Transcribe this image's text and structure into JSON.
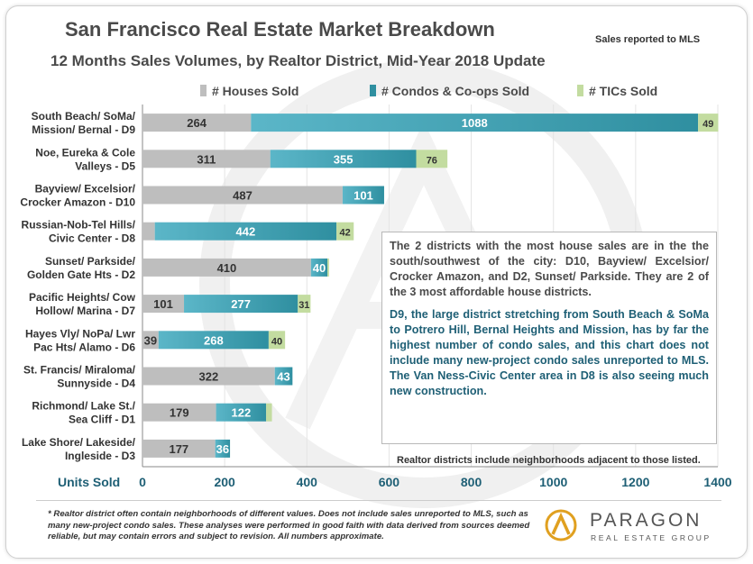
{
  "title": "San Francisco Real Estate Market Breakdown",
  "subtitle": "12 Months Sales Volumes, by Realtor District, Mid-Year 2018 Update",
  "sales_note": "Sales reported to MLS",
  "annotation": {
    "p1": "The 2 districts with the most house sales are in the the south/southwest of the city: D10, Bayview/ Excelsior/ Crocker Amazon, and D2, Sunset/ Parkside. They are 2 of the 3 most affordable house districts.",
    "p2": "D9, the large district stretching from South Beach & SoMa to Potrero Hill, Bernal Heights and Mission, has by far the highest number of condo sales, and this chart does not include many new-project condo sales unreported to MLS. The Van Ness-Civic Center area in D8 is also seeing much new construction."
  },
  "districts_note": "Realtor districts  include neighborhoods adjacent to those  listed.",
  "footnote": "* Realtor district often contain neighborhoods of different values. Does not include sales unreported to MLS, such as many new-project condo sales. These analyses were performed in good faith with data derived from sources deemed reliable, but may contain errors and subject to revision. All numbers approximate.",
  "logo": {
    "name": "PARAGON",
    "sub": "REAL ESTATE GROUP"
  },
  "colors": {
    "houses": "#bebebe",
    "condos": "#2f8fa0",
    "tics": "#c3dca0",
    "axis_text": "#1e5f75",
    "label_text": "#333333"
  },
  "chart_data": {
    "type": "bar",
    "orientation": "horizontal",
    "stacked": true,
    "xlabel": "Units Sold",
    "xlim": [
      0,
      1400
    ],
    "xticks": [
      "0",
      "200",
      "400",
      "600",
      "800",
      "1000",
      "1200",
      "1400"
    ],
    "categories": [
      [
        "South Beach/ SoMa/",
        "Mission/ Bernal - D9"
      ],
      [
        "Noe, Eureka & Cole",
        "Valleys - D5"
      ],
      [
        "Bayview/ Excelsior/",
        "Crocker Amazon - D10"
      ],
      [
        "Russian-Nob-Tel Hills/",
        "Civic Center - D8"
      ],
      [
        "Sunset/ Parkside/",
        "Golden Gate Hts - D2"
      ],
      [
        "Pacific Heights/ Cow",
        "Hollow/ Marina - D7"
      ],
      [
        "Hayes Vly/ NoPa/ Lwr",
        "Pac Hts/ Alamo - D6"
      ],
      [
        "St. Francis/  Miraloma/",
        "Sunnyside - D4"
      ],
      [
        "Richmond/ Lake St./",
        "Sea Cliff - D1"
      ],
      [
        "Lake Shore/ Lakeside/",
        "Ingleside - D3"
      ]
    ],
    "series": [
      {
        "name": "# Houses Sold",
        "values": [
          264,
          311,
          487,
          30,
          410,
          101,
          39,
          322,
          179,
          177
        ],
        "labels": [
          "264",
          "311",
          "487",
          "",
          "410",
          "101",
          "39",
          "322",
          "179",
          "177"
        ]
      },
      {
        "name": "# Condos & Co-ops Sold",
        "values": [
          1088,
          355,
          101,
          442,
          40,
          277,
          268,
          43,
          122,
          36
        ],
        "labels": [
          "1088",
          "355",
          "101",
          "442",
          "40",
          "277",
          "268",
          "43",
          "122",
          "36"
        ]
      },
      {
        "name": "# TICs Sold",
        "values": [
          49,
          76,
          0,
          42,
          4,
          31,
          40,
          0,
          14,
          0
        ],
        "labels": [
          "49",
          "76",
          "",
          "42",
          "",
          "31",
          "40",
          "",
          "",
          ""
        ]
      }
    ],
    "legend_position": "top"
  }
}
